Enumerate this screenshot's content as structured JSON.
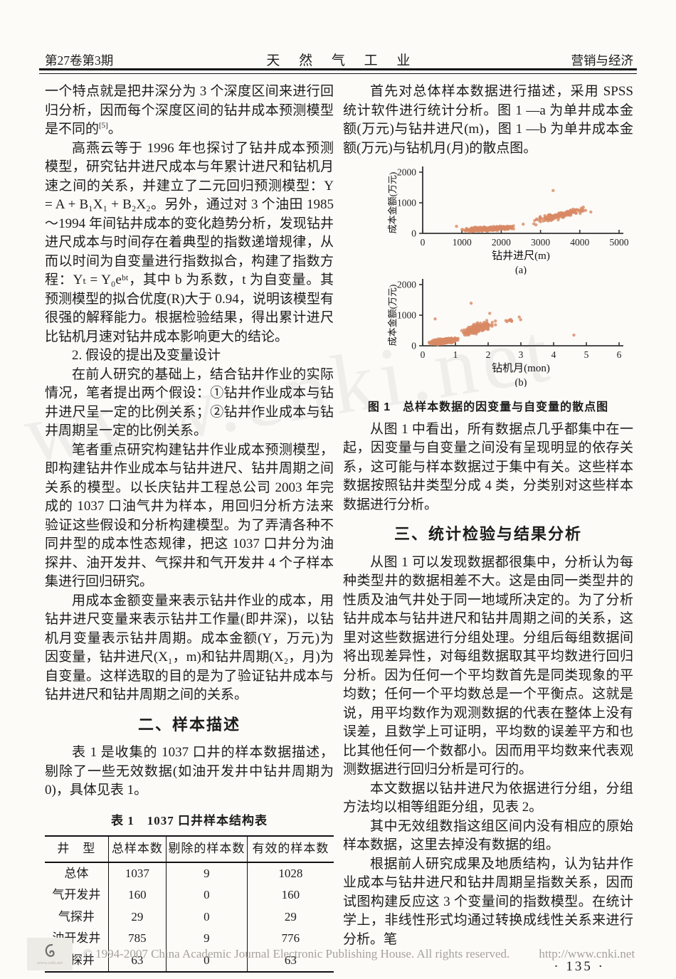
{
  "page": {
    "header": {
      "left": "第27卷第3期",
      "center": "天 然 气 工 业",
      "right": "营销与经济"
    },
    "watermark": "www.cnki.net",
    "page_number": "· 135 ·",
    "footer": {
      "copyright": "© 1994-2007 China Academic Journal Electronic Publishing House. All rights reserved.",
      "url": "http://www.cnki.net",
      "logo_caption": "www.cnki.net"
    }
  },
  "left_column": {
    "para1_pre": "一个特点就是把井深分为 3 个深度区间来进行回归分析，因而每个深度区间的钻井成本预测模型是不同的",
    "para1_sup": "[5]",
    "para1_post": "。",
    "para2": "高燕云等于 1996 年也探讨了钻井成本预测模型，研究钻井进尺成本与年累计进尺和钻机月速之间的关系，并建立了二元回归预测模型：Y = A + B₁X₁ + B₂X₂。另外，通过对 3 个油田 1985～1994 年间钻井成本的变化趋势分析，发现钻井进尺成本与时间存在着典型的指数递增规律，从而以时间为自变量进行指数拟合，构建了指数方程：Yₜ = Y₀eᵇᵗ，其中 b 为系数，t 为自变量。其预测模型的拟合优度(R)大于 0.94，说明该模型有很强的解释能力。根据检验结果，得出累计进尺比钻机月速对钻井成本影响更大的结论。",
    "para3": "2. 假设的提出及变量设计",
    "para4": "在前人研究的基础上，结合钻井作业的实际情况，笔者提出两个假设：①钻井作业成本与钻井进尺呈一定的比例关系；②钻井作业成本与钻井周期呈一定的比例关系。",
    "para5": "笔者重点研究构建钻井作业成本预测模型，即构建钻井作业成本与钻井进尺、钻井周期之间关系的模型。以长庆钻井工程总公司 2003 年完成的 1037 口油气井为样本，用回归分析方法来验证这些假设和分析构建模型。为了弄清各种不同井型的成本性态规律，把这 1037 口井分为油探井、油开发井、气探井和气开发井 4 个子样本集进行回归研究。",
    "para6": "用成本金额变量来表示钻井作业的成本，用钻井进尺变量来表示钻井工作量(即井深)，以钻机月变量表示钻井周期。成本金额(Y，万元)为因变量，钻井进尺(X₁，m)和钻井周期(X₂，月)为自变量。这样选取的目的是为了验证钻井成本与钻井进尺和钻井周期之间的关系。",
    "section2_title": "二、样本描述",
    "para7": "表 1 是收集的 1037 口井的样本数据描述，剔除了一些无效数据(如油开发井中钻井周期为 0)，具体见表 1。"
  },
  "table1": {
    "caption": "表 1　1037 口井样本结构表",
    "headers": [
      "井　型",
      "总样本数",
      "剔除的样本数",
      "有效的样本数"
    ],
    "rows": [
      [
        "总体",
        "1037",
        "9",
        "1028"
      ],
      [
        "气开发井",
        "160",
        "0",
        "160"
      ],
      [
        "气探井",
        "29",
        "0",
        "29"
      ],
      [
        "油开发井",
        "785",
        "9",
        "776"
      ],
      [
        "油探井",
        "63",
        "0",
        "63"
      ]
    ]
  },
  "right_column": {
    "para1": "首先对总体样本数据进行描述，采用 SPSS 统计软件进行统计分析。图 1 —a 为单井成本金额(万元)与钻井进尺(m)，图 1 —b 为单井成本金额(万元)与钻机月(月)的散点图。",
    "fig1_caption": "图 1　总样本数据的因变量与自变量的散点图",
    "para2": "从图 1 中看出，所有数据点几乎都集中在一起，因变量与自变量之间没有呈现明显的依存关系，这可能与样本数据过于集中有关。这些样本数据按照钻井类型分成 4 类，分类别对这些样本数据进行分析。",
    "section3_title": "三、统计检验与结果分析",
    "para3": "从图 1 可以发现数据都很集中，分析认为每种类型井的数据相差不大。这是由同一类型井的性质及油气井处于同一地域所决定的。为了分析钻井成本与钻井进尺和钻井周期之间的关系，这里对这些数据进行分组处理。分组后每组数据间将出现差异性，对每组数据取其平均数进行回归分析。因为任何一个平均数首先是同类现象的平均数；任何一个平均数总是一个平衡点。这就是说，用平均数作为观测数据的代表在整体上没有误差，且数学上可证明，平均数的误差平方和也比其他任何一个数都小。因而用平均数来代表观测数据进行回归分析是可行的。",
    "para4": "本文数据以钻井进尺为依据进行分组，分组方法均以相等组距分组，见表 2。",
    "para5": "其中无效组数指这组区间内没有相应的原始样本数据，这里去掉没有数据的组。",
    "para6": "根据前人研究成果及地质结构，认为钻井作业成本与钻井进尺和钻井周期呈指数关系，因而试图构建反应这 3 个变量间的指数模型。在统计学上，非线性形式均通过转换成线性关系来进行分析。笔"
  },
  "chart_data": [
    {
      "type": "scatter",
      "id": "fig-a",
      "sublabel": "(a)",
      "xlabel": "钻井进尺(m)",
      "ylabel": "成本金额(万元)",
      "xlim": [
        0,
        5000
      ],
      "ylim": [
        0,
        2000
      ],
      "xticks": [
        0,
        1000,
        2000,
        3000,
        4000,
        5000
      ],
      "yticks": [
        0,
        1000,
        2000
      ],
      "point_color": "#d88a64",
      "description": "单井成本金额与钻井进尺散点：进尺800~2500m处成本集中在100~300万元，进尺2700~4300m处成本随进尺上升至300~1000万元，约(3300,1400)处有一离群点",
      "clusters": [
        {
          "n": 430,
          "x": [
            830,
            2530
          ],
          "y_base": [
            95,
            205
          ],
          "y_spread": 170
        },
        {
          "n": 165,
          "x": [
            2620,
            4380
          ],
          "y_base": [
            330,
            860
          ],
          "y_spread": 290
        }
      ],
      "outliers": [
        [
          3320,
          1400
        ],
        [
          2560,
          300
        ],
        [
          4280,
          700
        ],
        [
          860,
          230
        ]
      ]
    },
    {
      "type": "scatter",
      "id": "fig-b",
      "sublabel": "(b)",
      "xlabel": "钻机月(mon)",
      "ylabel": "成本金额(万元)",
      "xlim": [
        0,
        6
      ],
      "ylim": [
        0,
        2000
      ],
      "xticks": [
        0,
        1,
        2,
        3,
        4,
        5,
        6
      ],
      "yticks": [
        0,
        1000,
        2000
      ],
      "point_color": "#d88a64",
      "description": "单井成本金额与钻机月散点：0.1~1.1月处成本集中在50~350万元，1.1~2.3月处成本升至200~1000万元，约(1.5,1390)与(4.6,350)处有离群点",
      "clusters": [
        {
          "n": 420,
          "x": [
            0.12,
            1.18
          ],
          "y_base": [
            85,
            220
          ],
          "y_spread": 200
        },
        {
          "n": 200,
          "x": [
            1.05,
            2.3
          ],
          "y_base": [
            360,
            780
          ],
          "y_spread": 420
        },
        {
          "n": 10,
          "x": [
            2.3,
            3.05
          ],
          "y_base": [
            760,
            880
          ],
          "y_spread": 160
        }
      ],
      "outliers": [
        [
          1.48,
          1390
        ],
        [
          4.62,
          350
        ],
        [
          0.38,
          880
        ],
        [
          2.95,
          940
        ],
        [
          2.05,
          1060
        ]
      ]
    }
  ]
}
